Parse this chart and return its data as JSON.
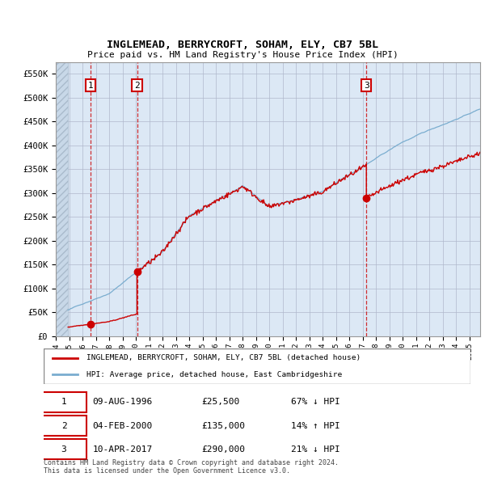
{
  "title": "INGLEMEAD, BERRYCROFT, SOHAM, ELY, CB7 5BL",
  "subtitle": "Price paid vs. HM Land Registry's House Price Index (HPI)",
  "ylabel_ticks": [
    "£0",
    "£50K",
    "£100K",
    "£150K",
    "£200K",
    "£250K",
    "£300K",
    "£350K",
    "£400K",
    "£450K",
    "£500K",
    "£550K"
  ],
  "ylim": [
    0,
    575000
  ],
  "xlim_start": 1994.0,
  "xlim_end": 2025.8,
  "hatch_end": 1994.92,
  "sale_dates": [
    1996.607,
    2000.089,
    2017.274
  ],
  "sale_prices": [
    25500,
    135000,
    290000
  ],
  "sale_labels": [
    "1",
    "2",
    "3"
  ],
  "legend_entries": [
    "INGLEMEAD, BERRYCROFT, SOHAM, ELY, CB7 5BL (detached house)",
    "HPI: Average price, detached house, East Cambridgeshire"
  ],
  "table_data": [
    [
      "1",
      "09-AUG-1996",
      "£25,500",
      "67% ↓ HPI"
    ],
    [
      "2",
      "04-FEB-2000",
      "£135,000",
      "14% ↑ HPI"
    ],
    [
      "3",
      "10-APR-2017",
      "£290,000",
      "21% ↓ HPI"
    ]
  ],
  "footnote": "Contains HM Land Registry data © Crown copyright and database right 2024.\nThis data is licensed under the Open Government Licence v3.0.",
  "sale_line_color": "#cc0000",
  "hpi_line_color": "#7aadcf",
  "grid_color": "#b0b8cc",
  "plot_bg_color": "#dce8f5",
  "hatch_color": "#c8d0dc"
}
